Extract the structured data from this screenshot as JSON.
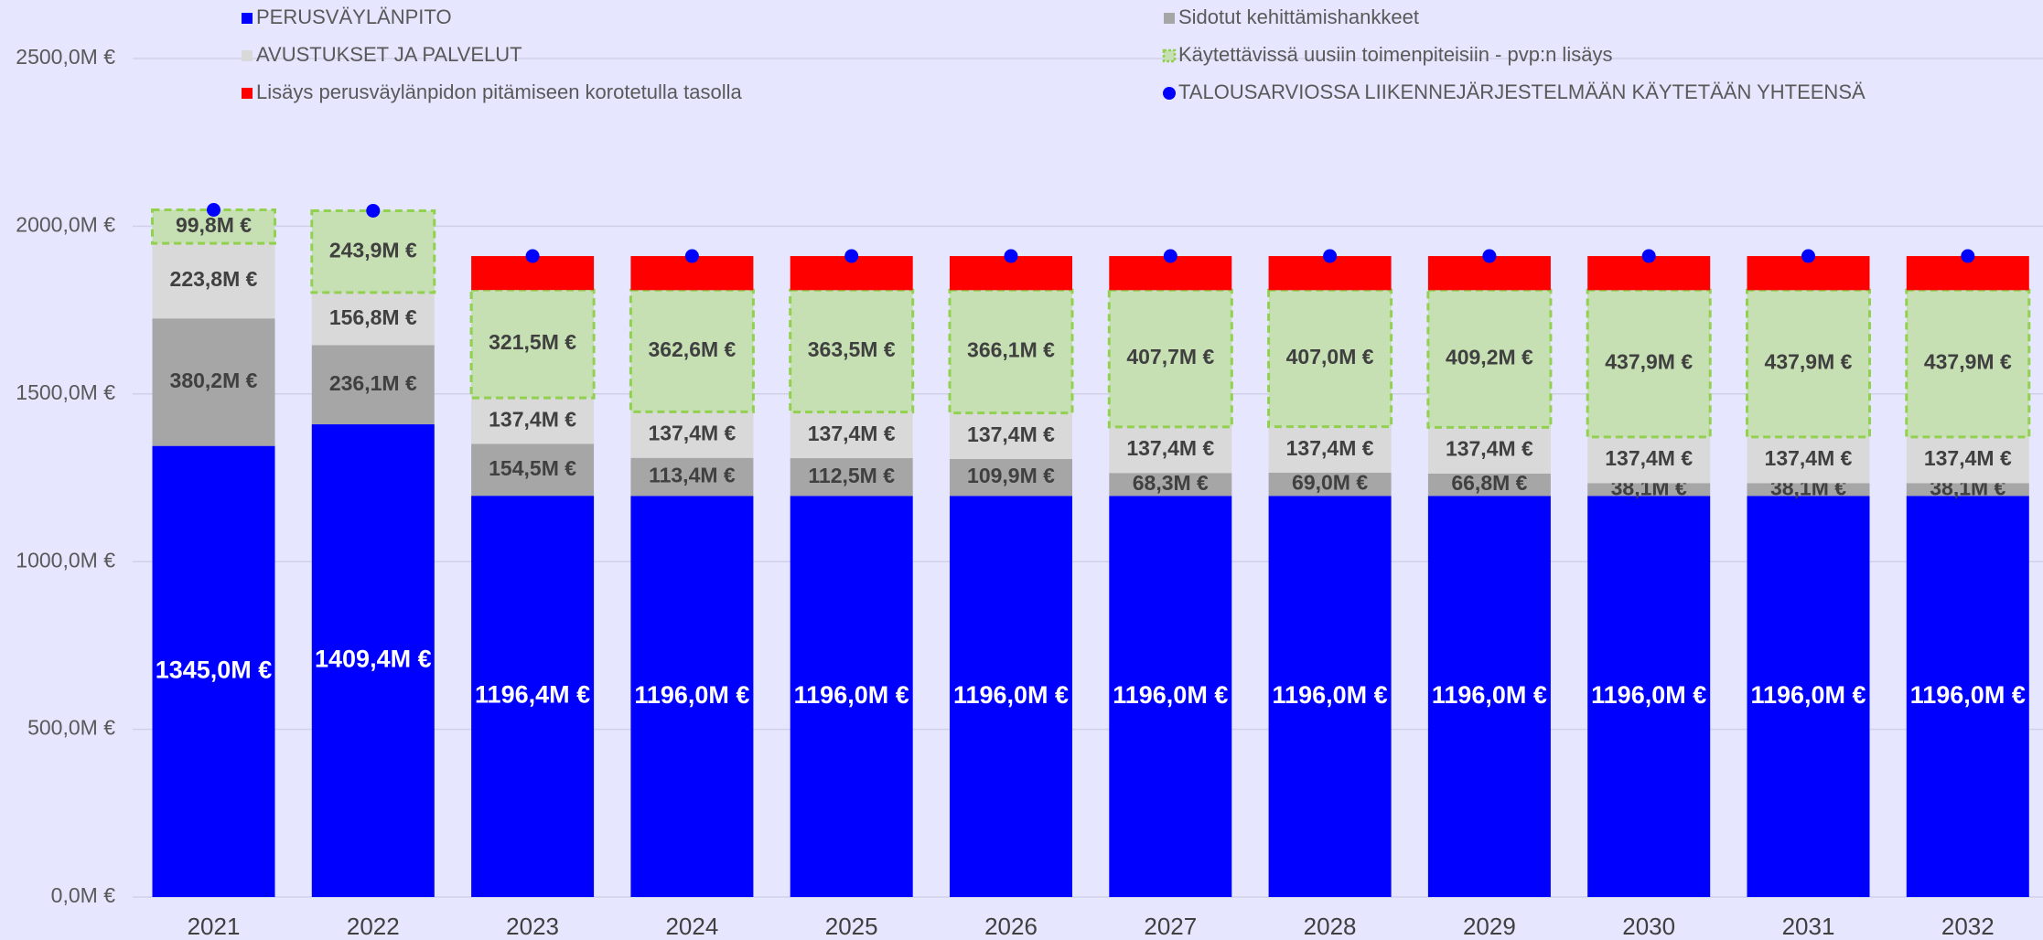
{
  "chart_data": {
    "type": "stacked_bar",
    "categories": [
      "2021",
      "2022",
      "2023",
      "2024",
      "2025",
      "2026",
      "2027",
      "2028",
      "2029",
      "2030",
      "2031",
      "2032"
    ],
    "ylim": [
      0,
      2500
    ],
    "yticks": [
      {
        "value": 0,
        "label": "0,0M €"
      },
      {
        "value": 500,
        "label": "500,0M €"
      },
      {
        "value": 1000,
        "label": "1000,0M €"
      },
      {
        "value": 1500,
        "label": "1500,0M €"
      },
      {
        "value": 2000,
        "label": "2000,0M €"
      },
      {
        "value": 2500,
        "label": "2500,0M €"
      }
    ],
    "grid": true,
    "legend": "top",
    "series": [
      {
        "name": "PERUSVÄYLÄNPITO",
        "color": "#0000ff",
        "label_color": "#ffffff",
        "values": [
          1345.0,
          1409.4,
          1196.4,
          1196.0,
          1196.0,
          1196.0,
          1196.0,
          1196.0,
          1196.0,
          1196.0,
          1196.0,
          1196.0
        ],
        "value_labels": [
          "1345,0M €",
          "1409,4M €",
          "1196,4M €",
          "1196,0M €",
          "1196,0M €",
          "1196,0M €",
          "1196,0M €",
          "1196,0M €",
          "1196,0M €",
          "1196,0M €",
          "1196,0M €",
          "1196,0M €"
        ]
      },
      {
        "name": "Sidotut kehittämishankkeet",
        "color": "#a6a6a6",
        "label_color": "#404040",
        "values": [
          380.2,
          236.1,
          154.5,
          113.4,
          112.5,
          109.9,
          68.3,
          69.0,
          66.8,
          38.1,
          38.1,
          38.1
        ],
        "value_labels": [
          "380,2M €",
          "236,1M €",
          "154,5M €",
          "113,4M €",
          "112,5M €",
          "109,9M €",
          "68,3M €",
          "69,0M €",
          "66,8M €",
          "38,1M €",
          "38,1M €",
          "38,1M €"
        ]
      },
      {
        "name": "AVUSTUKSET JA PALVELUT",
        "color": "#d9d9d9",
        "label_color": "#404040",
        "values": [
          223.8,
          156.8,
          137.4,
          137.4,
          137.4,
          137.4,
          137.4,
          137.4,
          137.4,
          137.4,
          137.4,
          137.4
        ],
        "value_labels": [
          "223,8M €",
          "156,8M €",
          "137,4M €",
          "137,4M €",
          "137,4M €",
          "137,4M €",
          "137,4M €",
          "137,4M €",
          "137,4M €",
          "137,4M €",
          "137,4M €",
          "137,4M €"
        ]
      },
      {
        "name": "Käytettävissä uusiin toimenpiteisiin - pvp:n lisäys",
        "color": "#c6e0b4",
        "border_color": "#92d050",
        "label_color": "#404040",
        "values": [
          99.8,
          243.9,
          321.5,
          362.6,
          363.5,
          366.1,
          407.7,
          407.0,
          409.2,
          437.9,
          437.9,
          437.9
        ],
        "value_labels": [
          "99,8M €",
          "243,9M €",
          "321,5M €",
          "362,6M €",
          "363,5M €",
          "366,1M €",
          "407,7M €",
          "407,0M €",
          "409,2M €",
          "437,9M €",
          "437,9M €",
          "437,9M €"
        ]
      },
      {
        "name": "Lisäys perusväylänpidon pitämiseen korotetulla tasolla",
        "color": "#ff0000",
        "values": [
          null,
          null,
          101.2,
          101.6,
          101.6,
          101.6,
          101.6,
          101.6,
          101.6,
          101.6,
          101.6,
          101.6
        ]
      },
      {
        "name": "TALOUSARVIOSSA LIIKENNEJÄRJESTELMÄÄN KÄYTETÄÄN YHTEENSÄ",
        "color": "#0000ff",
        "type": "dot",
        "values": [
          2048.8,
          2046.2,
          1911.0,
          1911.0,
          1911.0,
          1911.0,
          1911.0,
          1911.0,
          1911.0,
          1911.0,
          1911.0,
          1911.0
        ]
      }
    ]
  }
}
